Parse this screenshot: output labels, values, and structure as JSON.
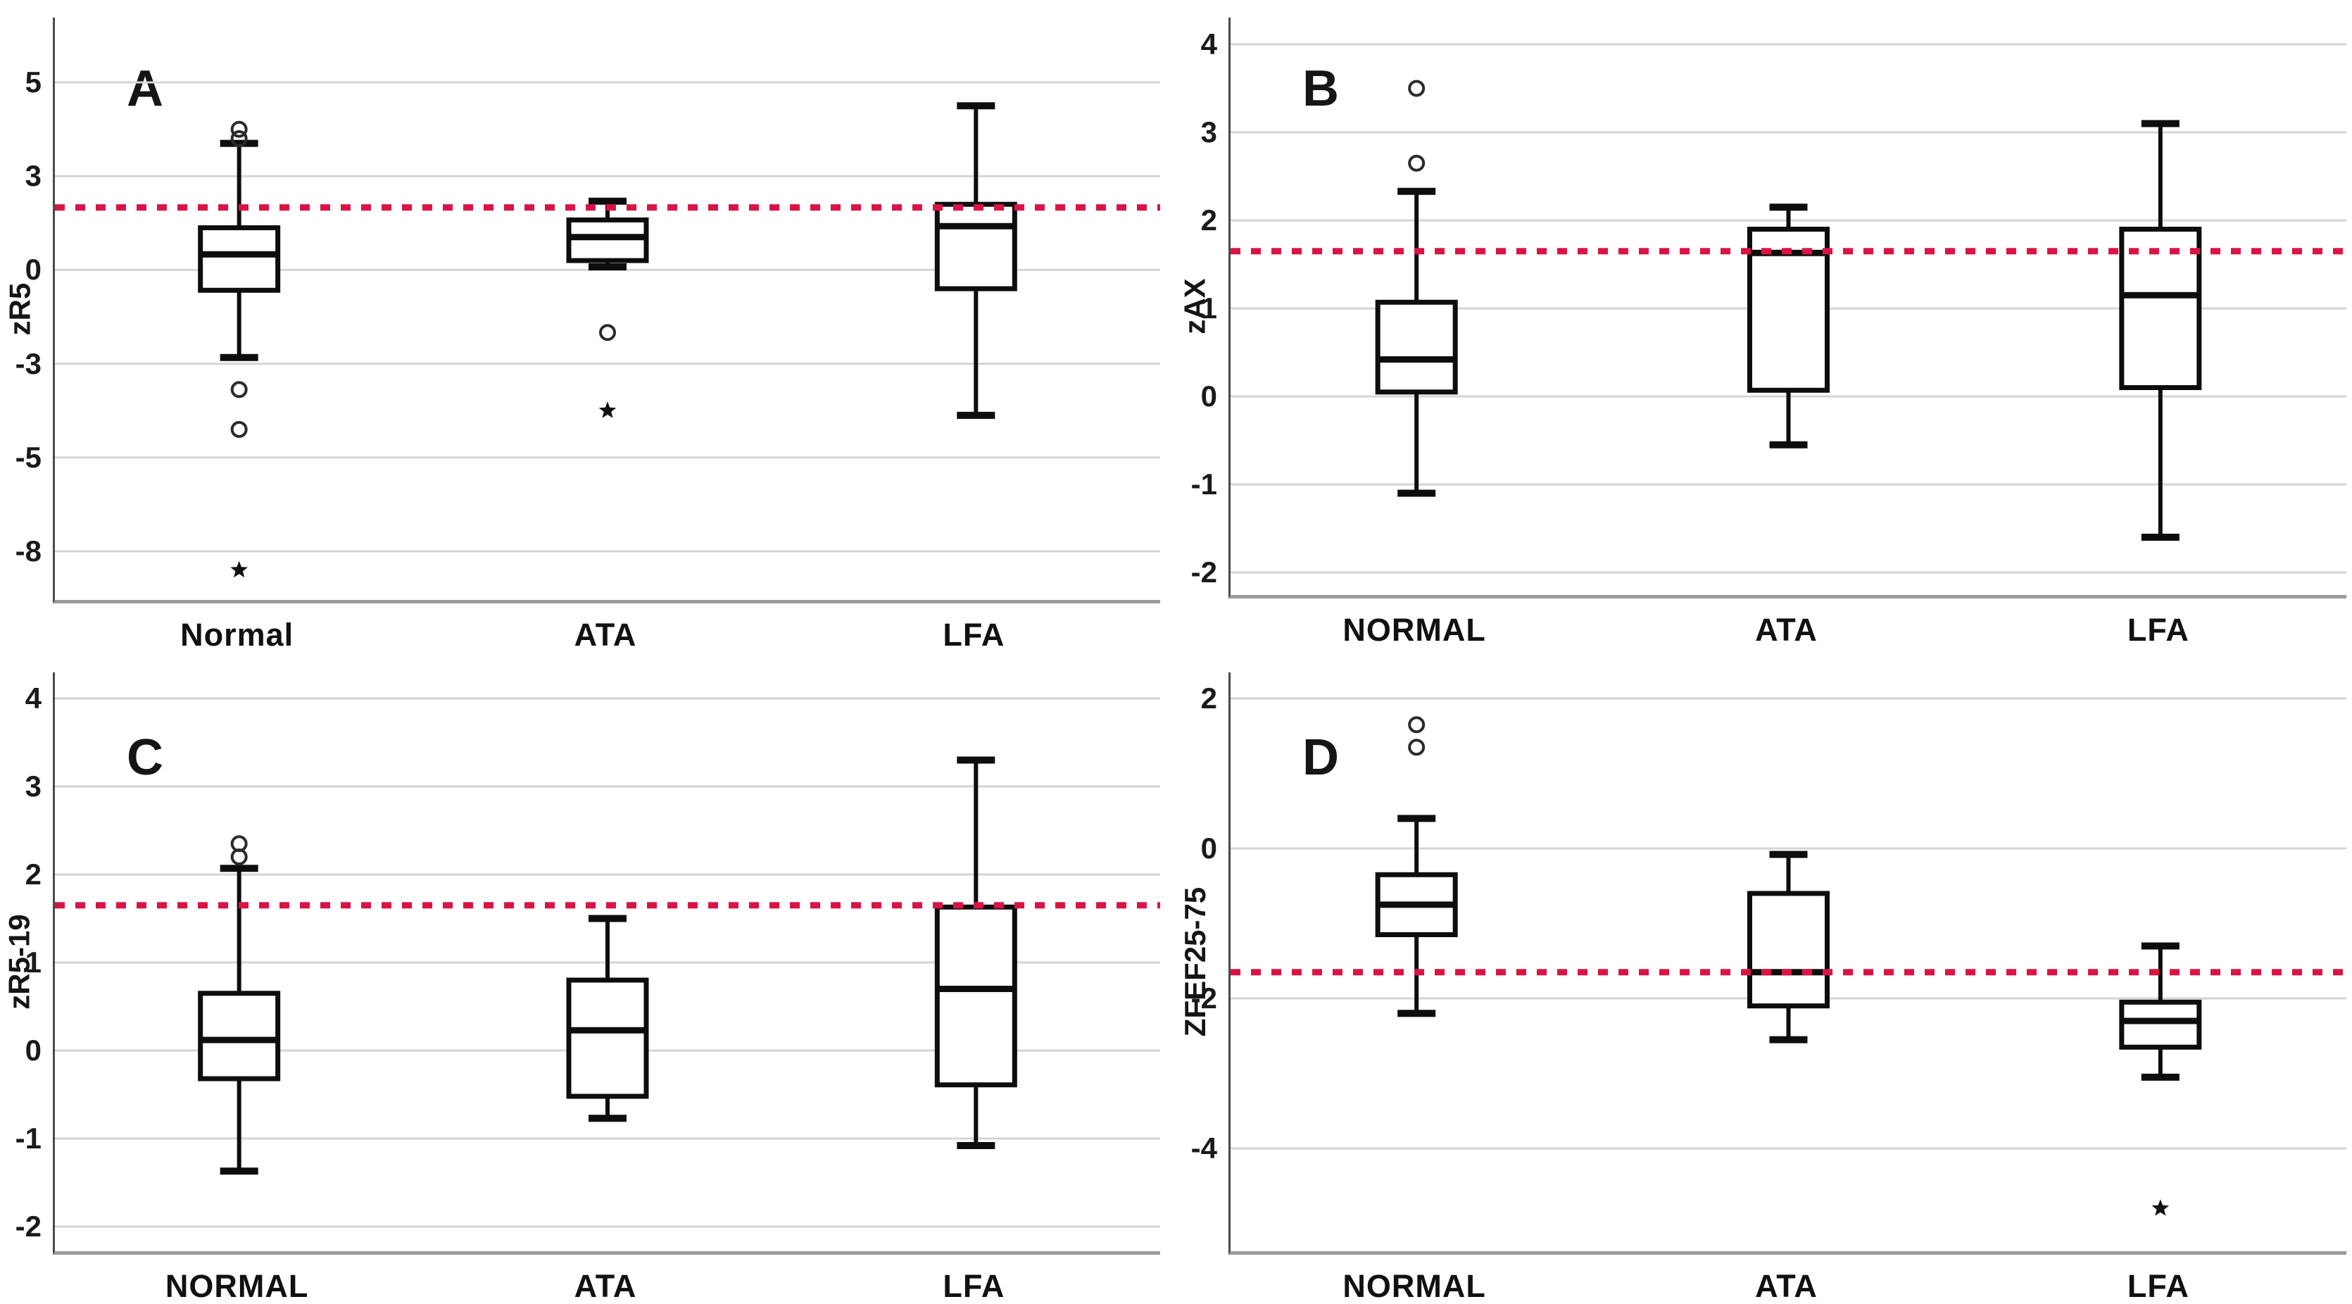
{
  "figure": {
    "background": "#ffffff",
    "grid_color": "#d5d5d5",
    "axis_color_left": "#4a4a4a",
    "axis_color_bottom": "#9b9b9b",
    "box_stroke_color": "#0d0d0d",
    "outlier_color": "#2b2b2b",
    "reference_line_color": "#db1345"
  },
  "chart_data": [
    {
      "type": "boxplot",
      "panel_label": "A",
      "ylabel": "zR5",
      "yticks": [
        5,
        3,
        0,
        -3,
        -5,
        -8
      ],
      "categories": [
        "Normal",
        "ATA",
        "LFA"
      ],
      "grid": true,
      "legend": false,
      "reference_line": {
        "value": 2.0,
        "style": "dashed"
      },
      "series": [
        {
          "name": "Normal",
          "whisker_low": -2.8,
          "q1": -0.65,
          "median": 0.5,
          "q3": 1.35,
          "whisker_high": 3.7,
          "outliers_circle": [
            4.0,
            3.8,
            -3.55,
            -4.4
          ],
          "outliers_star": [
            -8.6
          ]
        },
        {
          "name": "ATA",
          "whisker_low": 0.1,
          "q1": 0.3,
          "median": 1.05,
          "q3": 1.6,
          "whisker_high": 2.2,
          "outliers_circle": [
            -2.0
          ],
          "outliers_star": [
            -4.0
          ]
        },
        {
          "name": "LFA",
          "whisker_low": -4.1,
          "q1": -0.6,
          "median": 1.4,
          "q3": 2.1,
          "whisker_high": 4.5,
          "outliers_circle": [],
          "outliers_star": []
        }
      ]
    },
    {
      "type": "boxplot",
      "panel_label": "B",
      "ylabel": "zAX",
      "yticks": [
        4,
        3,
        2,
        1,
        0,
        -1,
        -2
      ],
      "categories": [
        "NORMAL",
        "ATA",
        "LFA"
      ],
      "grid": true,
      "legend": false,
      "reference_line": {
        "value": 1.65,
        "style": "dashed"
      },
      "series": [
        {
          "name": "NORMAL",
          "whisker_low": -1.1,
          "q1": 0.05,
          "median": 0.42,
          "q3": 1.07,
          "whisker_high": 2.33,
          "outliers_circle": [
            3.5,
            2.65
          ],
          "outliers_star": []
        },
        {
          "name": "ATA",
          "whisker_low": -0.55,
          "q1": 0.07,
          "median": 1.63,
          "q3": 1.9,
          "whisker_high": 2.15,
          "outliers_circle": [],
          "outliers_star": []
        },
        {
          "name": "LFA",
          "whisker_low": -1.6,
          "q1": 0.1,
          "median": 1.15,
          "q3": 1.9,
          "whisker_high": 3.1,
          "outliers_circle": [],
          "outliers_star": []
        }
      ]
    },
    {
      "type": "boxplot",
      "panel_label": "C",
      "ylabel": "zR5-19",
      "yticks": [
        4,
        3,
        2,
        1,
        0,
        -1,
        -2
      ],
      "categories": [
        "NORMAL",
        "ATA",
        "LFA"
      ],
      "grid": true,
      "legend": false,
      "reference_line": {
        "value": 1.65,
        "style": "dashed"
      },
      "series": [
        {
          "name": "NORMAL",
          "whisker_low": -1.37,
          "q1": -0.32,
          "median": 0.12,
          "q3": 0.65,
          "whisker_high": 2.07,
          "outliers_circle": [
            2.35,
            2.2
          ],
          "outliers_star": []
        },
        {
          "name": "ATA",
          "whisker_low": -0.77,
          "q1": -0.52,
          "median": 0.23,
          "q3": 0.8,
          "whisker_high": 1.5,
          "outliers_circle": [],
          "outliers_star": []
        },
        {
          "name": "LFA",
          "whisker_low": -1.08,
          "q1": -0.39,
          "median": 0.7,
          "q3": 1.63,
          "whisker_high": 3.3,
          "outliers_circle": [],
          "outliers_star": []
        }
      ]
    },
    {
      "type": "boxplot",
      "panel_label": "D",
      "ylabel": "ZFEF25-75",
      "yticks": [
        2,
        0,
        -2,
        -4
      ],
      "categories": [
        "NORMAL",
        "ATA",
        "LFA"
      ],
      "grid": true,
      "legend": false,
      "reference_line": {
        "value": -1.65,
        "style": "dashed"
      },
      "series": [
        {
          "name": "NORMAL",
          "whisker_low": -2.2,
          "q1": -1.15,
          "median": -0.75,
          "q3": -0.35,
          "whisker_high": 0.4,
          "outliers_circle": [
            1.65,
            1.35
          ],
          "outliers_star": []
        },
        {
          "name": "ATA",
          "whisker_low": -2.55,
          "q1": -2.1,
          "median": -1.65,
          "q3": -0.6,
          "whisker_high": -0.08,
          "outliers_circle": [],
          "outliers_star": []
        },
        {
          "name": "LFA",
          "whisker_low": -3.05,
          "q1": -2.65,
          "median": -2.3,
          "q3": -2.05,
          "whisker_high": -1.3,
          "outliers_circle": [],
          "outliers_star": [
            -4.8
          ]
        }
      ]
    }
  ]
}
